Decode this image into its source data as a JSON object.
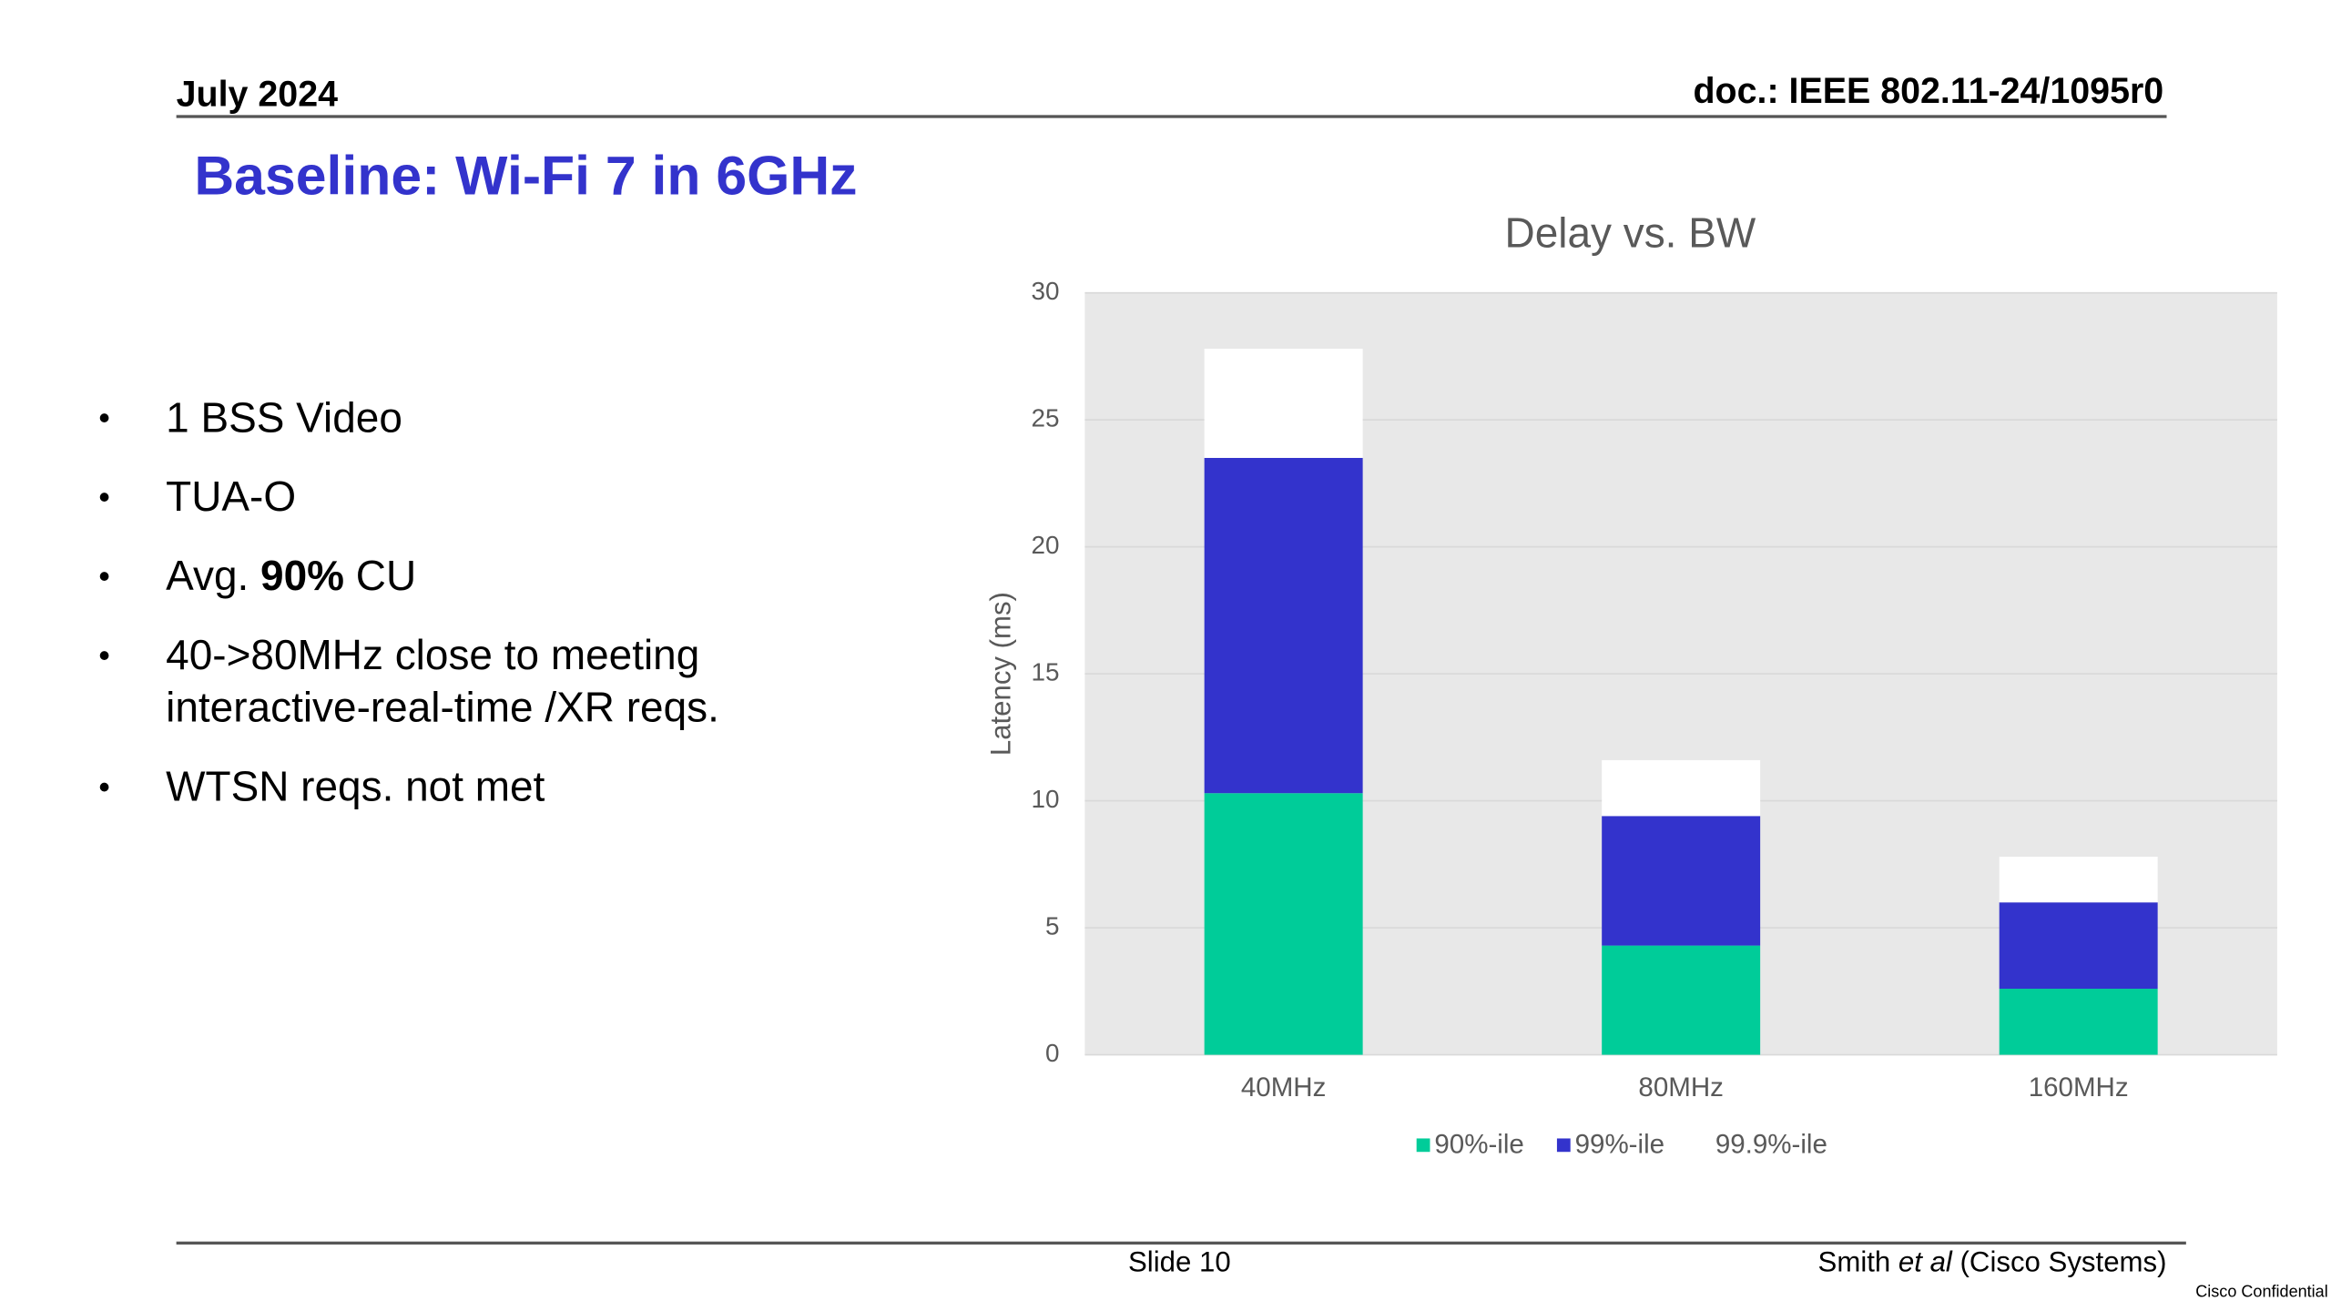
{
  "header": {
    "date": "July 2024",
    "doc": "doc.: IEEE 802.11-24/1095r0"
  },
  "title": "Baseline: Wi-Fi 7 in 6GHz",
  "bullets": [
    [
      "1 BSS Video"
    ],
    [
      "TUA-O"
    ],
    [
      "Avg. ",
      {
        "text": "90%",
        "bold": true
      },
      " CU"
    ],
    [
      "40->80MHz close to meeting interactive-real-time /XR reqs."
    ],
    [
      "WTSN reqs. not met"
    ]
  ],
  "chart_data": {
    "type": "stacked_bar",
    "title": "Delay vs. BW",
    "y_label": "Latency (ms)",
    "categories": [
      "40MHz",
      "80MHz",
      "160MHz"
    ],
    "series": [
      {
        "name": "90%-ile",
        "color": "#00cc99",
        "values": [
          10.3,
          4.3,
          2.6
        ]
      },
      {
        "name": "99%-ile",
        "color": "#3333cc",
        "values": [
          13.2,
          5.1,
          3.4
        ]
      },
      {
        "name": "99.9%-ile",
        "color": "#ffffff",
        "values": [
          4.3,
          2.2,
          1.8
        ]
      }
    ],
    "ylim": [
      0,
      30
    ],
    "yticks": [
      0,
      5,
      10,
      15,
      20,
      25,
      30
    ],
    "grid": true,
    "legend": "bottom"
  },
  "footer": {
    "slide": "Slide 10",
    "author": [
      "Smith ",
      {
        "text": "et al",
        "italic": true
      },
      " (Cisco Systems)"
    ],
    "confidential": "Cisco Confidential"
  }
}
